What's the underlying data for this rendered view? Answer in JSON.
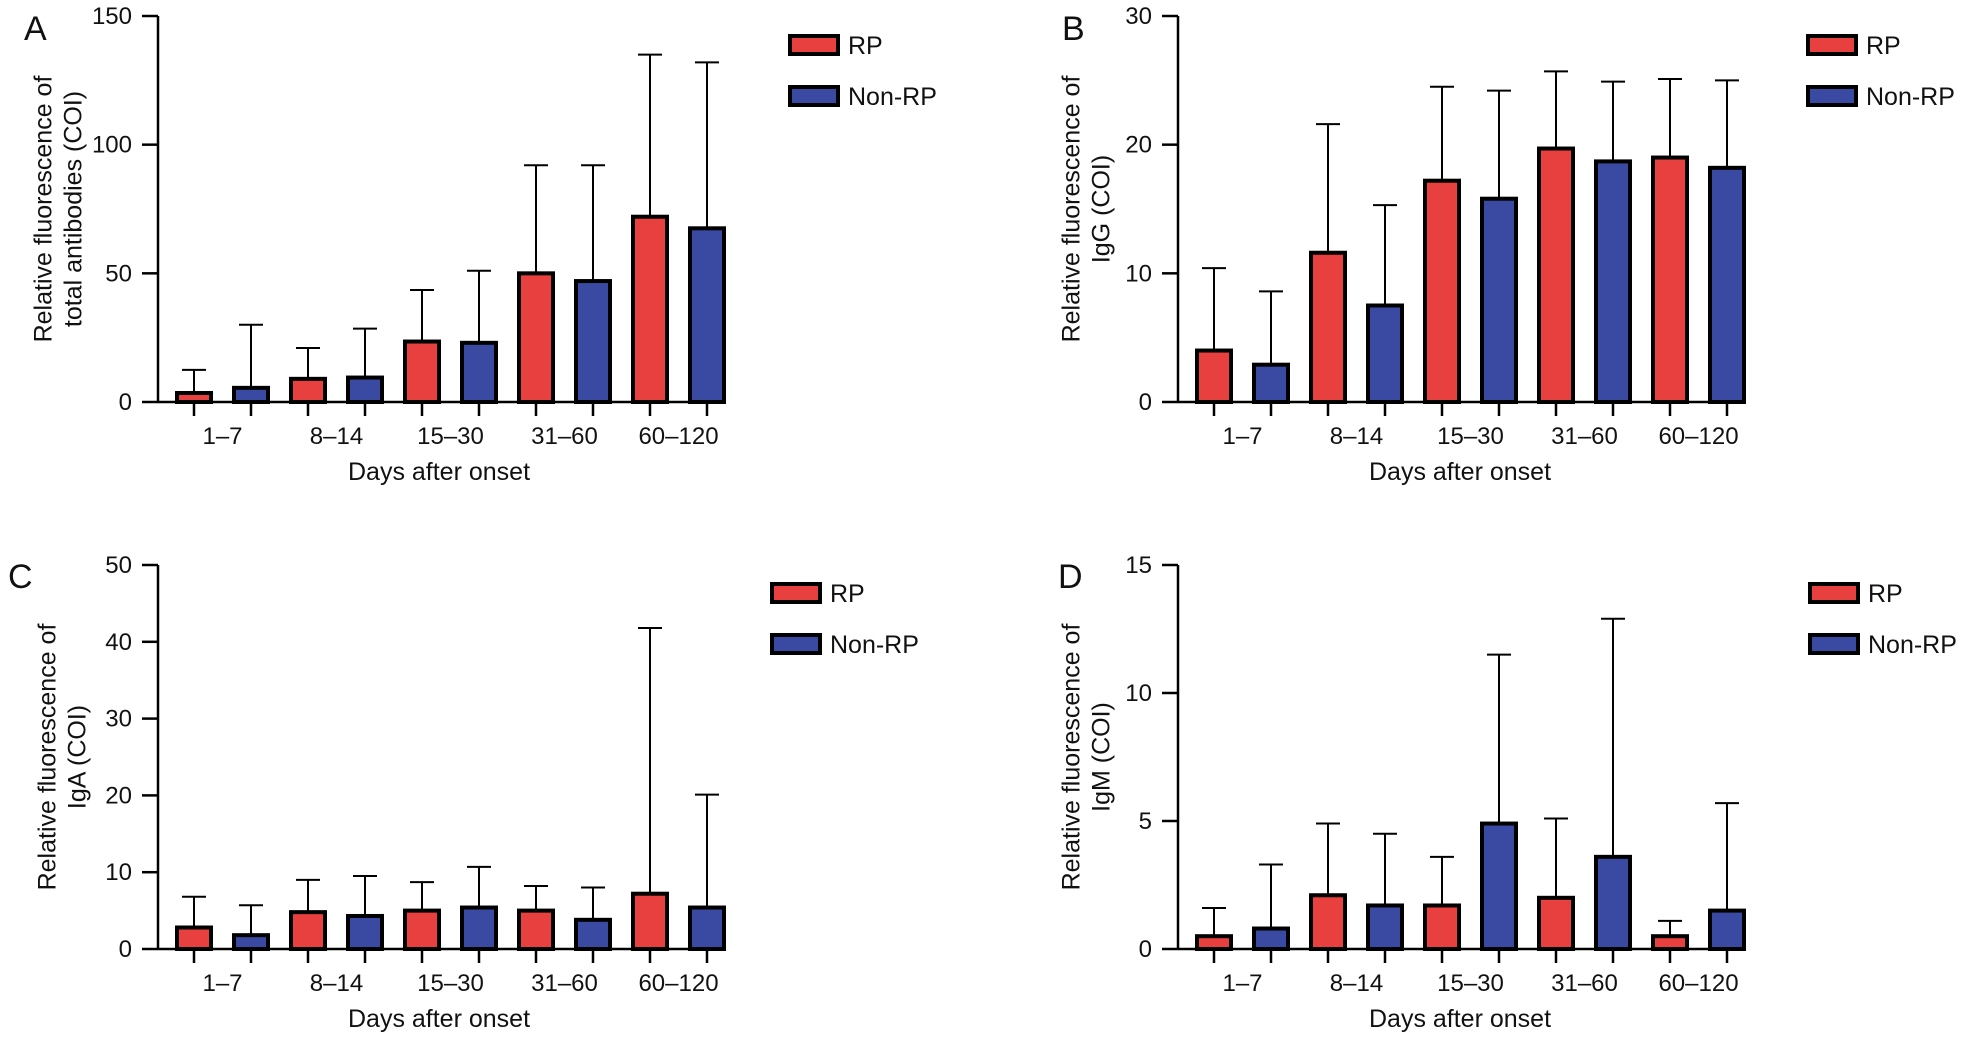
{
  "colors": {
    "rp": "#e8403f",
    "non_rp": "#3a4aa2",
    "stroke": "#000000"
  },
  "chart_data": [
    {
      "type": "bar",
      "panel_label": "A",
      "categories": [
        "1–7",
        "8–14",
        "15–30",
        "31–60",
        "60–120"
      ],
      "series": [
        {
          "name": "RP",
          "values": [
            3.5,
            9,
            23.5,
            50,
            72
          ],
          "error_upper": [
            12.5,
            21,
            43.5,
            92,
            135
          ]
        },
        {
          "name": "Non-RP",
          "values": [
            5.5,
            9.5,
            23,
            47,
            67.5
          ],
          "error_upper": [
            30,
            28.5,
            51,
            92,
            132
          ]
        }
      ],
      "xlabel": "Days after onset",
      "ylabel_lines": [
        "Relative fluorescence of",
        "total antibodies (COI)"
      ],
      "ylim": [
        0,
        150
      ],
      "yticks": [
        0,
        50,
        100,
        150
      ],
      "legend_position": "top-right",
      "grid": false
    },
    {
      "type": "bar",
      "panel_label": "B",
      "categories": [
        "1–7",
        "8–14",
        "15–30",
        "31–60",
        "60–120"
      ],
      "series": [
        {
          "name": "RP",
          "values": [
            4,
            11.6,
            17.2,
            19.7,
            19
          ],
          "error_upper": [
            10.4,
            21.6,
            24.5,
            25.7,
            25.1
          ]
        },
        {
          "name": "Non-RP",
          "values": [
            2.9,
            7.5,
            15.8,
            18.7,
            18.2
          ],
          "error_upper": [
            8.6,
            15.3,
            24.2,
            24.9,
            25
          ]
        }
      ],
      "xlabel": "Days after onset",
      "ylabel_lines": [
        "Relative fluorescence of",
        "IgG (COI)"
      ],
      "ylim": [
        0,
        30
      ],
      "yticks": [
        0,
        10,
        20,
        30
      ],
      "legend_position": "top-right",
      "grid": false
    },
    {
      "type": "bar",
      "panel_label": "C",
      "categories": [
        "1–7",
        "8–14",
        "15–30",
        "31–60",
        "60–120"
      ],
      "series": [
        {
          "name": "RP",
          "values": [
            2.8,
            4.8,
            5,
            5,
            7.2
          ],
          "error_upper": [
            6.8,
            9,
            8.7,
            8.2,
            41.8
          ]
        },
        {
          "name": "Non-RP",
          "values": [
            1.8,
            4.3,
            5.4,
            3.8,
            5.4
          ],
          "error_upper": [
            5.7,
            9.5,
            10.7,
            8,
            20.1
          ]
        }
      ],
      "xlabel": "Days after onset",
      "ylabel_lines": [
        "Relative fluorescence of",
        "IgA (COI)"
      ],
      "ylim": [
        0,
        50
      ],
      "yticks": [
        0,
        10,
        20,
        30,
        40,
        50
      ],
      "legend_position": "top-right",
      "grid": false
    },
    {
      "type": "bar",
      "panel_label": "D",
      "categories": [
        "1–7",
        "8–14",
        "15–30",
        "31–60",
        "60–120"
      ],
      "series": [
        {
          "name": "RP",
          "values": [
            0.5,
            2.1,
            1.7,
            2,
            0.5
          ],
          "error_upper": [
            1.6,
            4.9,
            3.6,
            5.1,
            1.1
          ]
        },
        {
          "name": "Non-RP",
          "values": [
            0.8,
            1.7,
            4.9,
            3.6,
            1.5
          ],
          "error_upper": [
            3.3,
            4.5,
            11.5,
            12.9,
            5.7
          ]
        }
      ],
      "xlabel": "Days after onset",
      "ylabel_lines": [
        "Relative fluorescence of",
        "IgM (COI)"
      ],
      "ylim": [
        0,
        15
      ],
      "yticks": [
        0,
        5,
        10,
        15
      ],
      "legend_position": "top-right",
      "grid": false
    }
  ]
}
